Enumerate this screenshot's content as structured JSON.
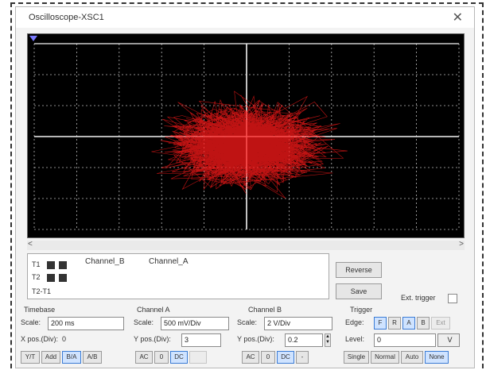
{
  "window": {
    "title": "Oscilloscope-XSC1",
    "close_glyph": "✕"
  },
  "scroll": {
    "left": "<",
    "right": ">"
  },
  "cursor_panel": {
    "rows": [
      "T1",
      "T2",
      "T2-T1"
    ],
    "channel_b": "Channel_B",
    "channel_a": "Channel_A"
  },
  "buttons": {
    "reverse": "Reverse",
    "save": "Save"
  },
  "ext_trigger": "Ext. trigger",
  "timebase": {
    "heading": "Timebase",
    "scale_label": "Scale:",
    "scale_value": "200 ms",
    "xpos_label": "X pos.(Div):",
    "xpos_value": "0",
    "modes": [
      "Y/T",
      "Add",
      "B/A",
      "A/B"
    ],
    "active_mode": "B/A"
  },
  "channel_a": {
    "heading": "Channel A",
    "scale_label": "Scale:",
    "scale_value": "500 mV/Div",
    "ypos_label": "Y pos.(Div):",
    "ypos_value": "3",
    "coupling": [
      "AC",
      "0",
      "DC"
    ],
    "active": "DC"
  },
  "channel_b": {
    "heading": "Channel B",
    "scale_label": "Scale:",
    "scale_value": "2 V/Div",
    "ypos_label": "Y pos.(Div):",
    "ypos_value": "0.2",
    "coupling": [
      "AC",
      "0",
      "DC",
      "-"
    ],
    "active": "DC"
  },
  "trigger": {
    "heading": "Trigger",
    "edge_label": "Edge:",
    "edge_buttons": [
      "F",
      "R",
      "A",
      "B",
      "Ext"
    ],
    "level_label": "Level:",
    "level_value": "0",
    "level_unit": "V",
    "modes": [
      "Single",
      "Normal",
      "Auto",
      "None"
    ],
    "active_mode": "None"
  },
  "colors": {
    "trace": "#ff1a1a",
    "screen": "#000000",
    "grid": "#bbbbbb",
    "axis": "#f2f2f2"
  }
}
